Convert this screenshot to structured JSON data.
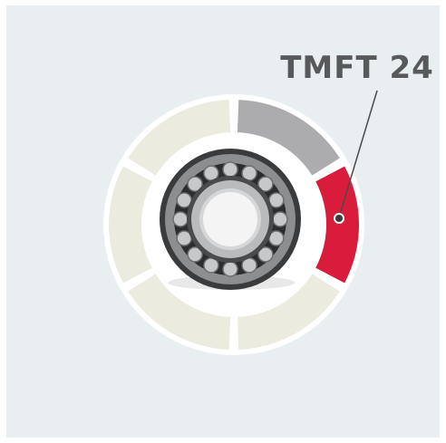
{
  "label": "TMFT 24"
}
